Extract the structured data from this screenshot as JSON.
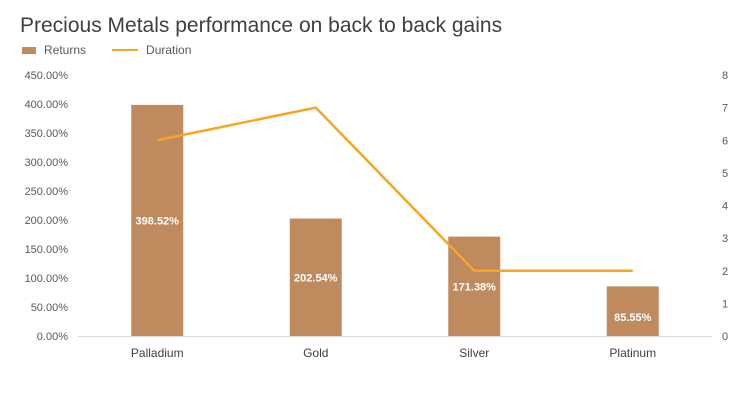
{
  "chart_data": {
    "type": "bar",
    "title": "Precious Metals performance on back to back gains",
    "categories": [
      "Palladium",
      "Gold",
      "Silver",
      "Platinum"
    ],
    "series": [
      {
        "name": "Returns",
        "type": "bar",
        "axis": "left",
        "values": [
          398.52,
          202.54,
          171.38,
          85.55
        ],
        "labels": [
          "398.52%",
          "202.54%",
          "171.38%",
          "85.55%"
        ],
        "color": "#BF8B5E"
      },
      {
        "name": "Duration",
        "type": "line",
        "axis": "right",
        "values": [
          6,
          7,
          2,
          2
        ],
        "color": "#F5A623"
      }
    ],
    "y_left": {
      "ylim": [
        0,
        450
      ],
      "ticks": [
        "0.00%",
        "50.00%",
        "100.00%",
        "150.00%",
        "200.00%",
        "250.00%",
        "300.00%",
        "350.00%",
        "400.00%",
        "450.00%"
      ]
    },
    "y_right": {
      "ylim": [
        0,
        8
      ],
      "ticks": [
        "0",
        "1",
        "2",
        "3",
        "4",
        "5",
        "6",
        "7",
        "8"
      ]
    },
    "legend": "top-left",
    "grid": false
  }
}
